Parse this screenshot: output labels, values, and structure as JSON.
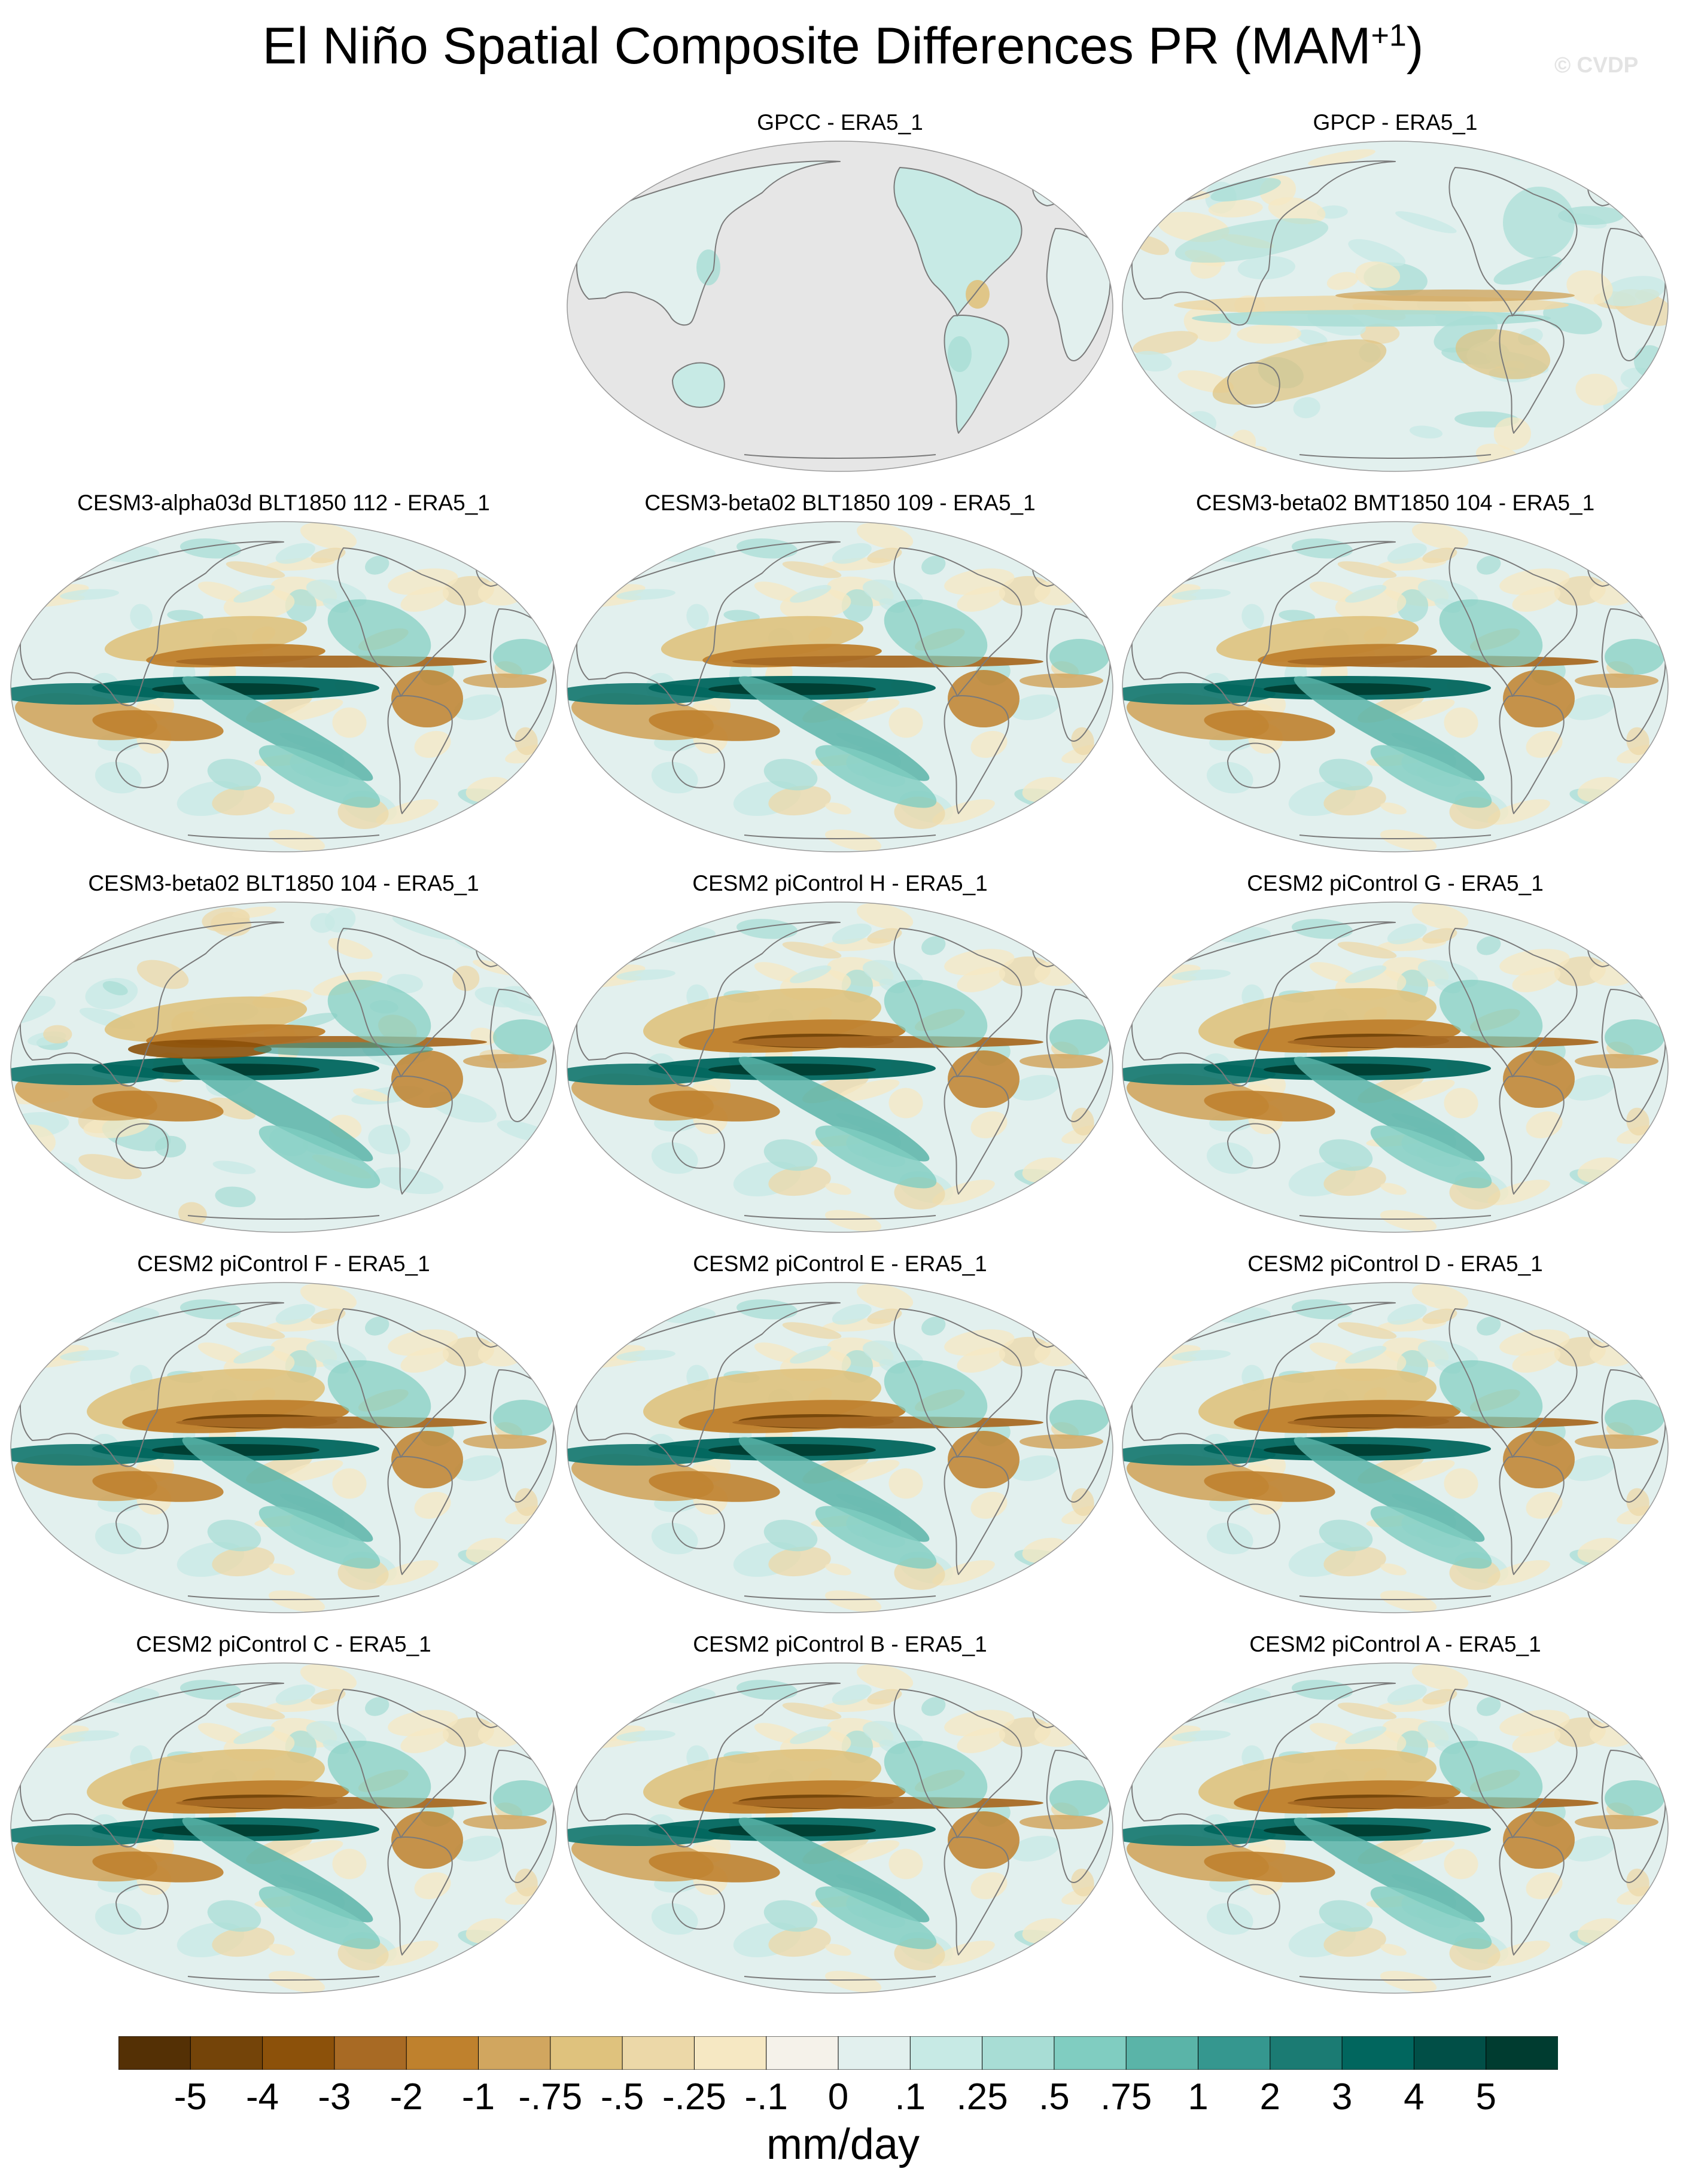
{
  "figure": {
    "title_main": "El Niño Spatial Composite Differences PR (MAM",
    "title_sup": "+1",
    "title_close": ")",
    "watermark": "© CVDP",
    "units_label": "mm/day"
  },
  "panels": [
    {
      "title": "GPCC - ERA5_1",
      "row": 0,
      "col": 1,
      "land_only": true,
      "pattern": "weak"
    },
    {
      "title": "GPCP - ERA5_1",
      "row": 0,
      "col": 2,
      "land_only": false,
      "pattern": "obs"
    },
    {
      "title": "CESM3-alpha03d BLT1850 112 - ERA5_1",
      "row": 1,
      "col": 0,
      "land_only": false,
      "pattern": "cesm3"
    },
    {
      "title": "CESM3-beta02 BLT1850 109 - ERA5_1",
      "row": 1,
      "col": 1,
      "land_only": false,
      "pattern": "cesm3"
    },
    {
      "title": "CESM3-beta02 BMT1850 104 - ERA5_1",
      "row": 1,
      "col": 2,
      "land_only": false,
      "pattern": "cesm3"
    },
    {
      "title": "CESM3-beta02 BLT1850 104 - ERA5_1",
      "row": 2,
      "col": 0,
      "land_only": false,
      "pattern": "cesm3b"
    },
    {
      "title": "CESM2 piControl H - ERA5_1",
      "row": 2,
      "col": 1,
      "land_only": false,
      "pattern": "cesm2"
    },
    {
      "title": "CESM2 piControl G - ERA5_1",
      "row": 2,
      "col": 2,
      "land_only": false,
      "pattern": "cesm2"
    },
    {
      "title": "CESM2 piControl F - ERA5_1",
      "row": 3,
      "col": 0,
      "land_only": false,
      "pattern": "cesm2"
    },
    {
      "title": "CESM2 piControl E - ERA5_1",
      "row": 3,
      "col": 1,
      "land_only": false,
      "pattern": "cesm2"
    },
    {
      "title": "CESM2 piControl D - ERA5_1",
      "row": 3,
      "col": 2,
      "land_only": false,
      "pattern": "cesm2"
    },
    {
      "title": "CESM2 piControl C - ERA5_1",
      "row": 4,
      "col": 0,
      "land_only": false,
      "pattern": "cesm2"
    },
    {
      "title": "CESM2 piControl B - ERA5_1",
      "row": 4,
      "col": 1,
      "land_only": false,
      "pattern": "cesm2"
    },
    {
      "title": "CESM2 piControl A - ERA5_1",
      "row": 4,
      "col": 2,
      "land_only": false,
      "pattern": "cesm2"
    }
  ],
  "colorbar": {
    "colors": [
      "#543005",
      "#744409",
      "#8c510a",
      "#a86a24",
      "#bf812d",
      "#d1a65f",
      "#dfc27d",
      "#ecd8a8",
      "#f6e8c3",
      "#f5f2ea",
      "#e2f0ee",
      "#c7eae5",
      "#a8ddd5",
      "#80cdc1",
      "#5ab4a8",
      "#35978f",
      "#1b7b73",
      "#01665e",
      "#014f47",
      "#003c30"
    ],
    "tick_labels": [
      "-5",
      "-4",
      "-3",
      "-2",
      "-1",
      "-.75",
      "-.5",
      "-.25",
      "-.1",
      "0",
      ".1",
      ".25",
      ".5",
      ".75",
      "1",
      "2",
      "3",
      "4",
      "5"
    ]
  },
  "map_style": {
    "land_mask_color": "#e6e6e6",
    "coast_color": "#7a7a7a",
    "outline_color": "#9a9a9a"
  }
}
